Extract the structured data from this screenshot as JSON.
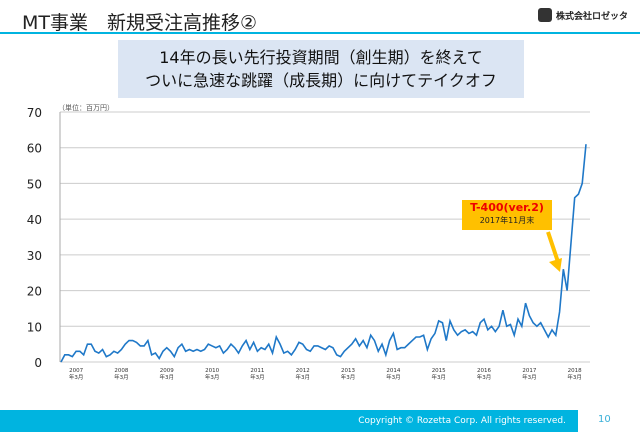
{
  "header": {
    "title": "MT事業　新規受注高推移②",
    "company": "株式会社ロゼッタ"
  },
  "subtitle": {
    "line1": "14年の長い先行投資期間（創生期）を終えて",
    "line2": "ついに急速な跳躍（成長期）に向けてテイクオフ"
  },
  "chart_data": {
    "type": "line",
    "unit_label": "（単位：百万円）",
    "ylim": [
      0,
      70
    ],
    "yticks": [
      0,
      10,
      20,
      30,
      40,
      50,
      60,
      70
    ],
    "x_start": "2006-11",
    "x_end": "2018-06",
    "xticks": [
      {
        "year": "2007",
        "sub": "年3月"
      },
      {
        "year": "2008",
        "sub": "年3月"
      },
      {
        "year": "2009",
        "sub": "年3月"
      },
      {
        "year": "2010",
        "sub": "年3月"
      },
      {
        "year": "2011",
        "sub": "年3月"
      },
      {
        "year": "2012",
        "sub": "年3月"
      },
      {
        "year": "2013",
        "sub": "年3月"
      },
      {
        "year": "2014",
        "sub": "年3月"
      },
      {
        "year": "2015",
        "sub": "年3月"
      },
      {
        "year": "2016",
        "sub": "年3月"
      },
      {
        "year": "2017",
        "sub": "年3月"
      },
      {
        "year": "2018",
        "sub": "年3月"
      }
    ],
    "series": [
      {
        "name": "新規受注高",
        "color": "#1f78c8",
        "values": [
          0,
          2,
          2,
          1.5,
          3,
          3,
          2,
          5,
          5,
          3,
          2.5,
          3.5,
          1.5,
          2,
          3,
          2.5,
          3.5,
          5,
          6,
          6,
          5.5,
          4.5,
          4.5,
          6,
          2,
          2.5,
          1,
          3,
          4,
          3,
          1.5,
          4,
          5,
          3,
          3.5,
          3,
          3.5,
          3,
          3.5,
          5,
          4.5,
          4,
          4.5,
          2.5,
          3.5,
          5,
          4,
          2.5,
          4.5,
          6,
          3.5,
          5.5,
          3,
          4,
          3.5,
          5,
          2.5,
          7,
          5,
          2.5,
          3,
          2,
          3.5,
          5.5,
          5,
          3.5,
          3,
          4.5,
          4.5,
          4,
          3.5,
          4.5,
          4,
          2,
          1.5,
          3,
          4,
          5,
          6.5,
          4.5,
          6,
          4,
          7.5,
          6,
          3,
          5,
          2,
          6,
          8,
          3.5,
          4,
          4,
          5,
          6,
          7,
          7,
          7.5,
          3.5,
          6.5,
          8,
          11.5,
          11,
          6,
          11.5,
          9,
          7.5,
          8.5,
          9,
          8,
          8.5,
          7.5,
          11,
          12,
          9,
          10,
          8.5,
          10,
          14.5,
          10,
          10.5,
          7.5,
          12,
          10,
          16.5,
          13,
          11,
          10,
          11,
          9,
          7,
          9,
          7.5,
          14,
          26,
          20,
          33,
          46,
          47,
          50,
          61
        ]
      }
    ],
    "annotation": {
      "label": "T-400(ver.2)",
      "sub": "2017年11月末"
    }
  },
  "footer": {
    "copyright": "Copyright © Rozetta Corp. All rights reserved.",
    "page": "10"
  }
}
